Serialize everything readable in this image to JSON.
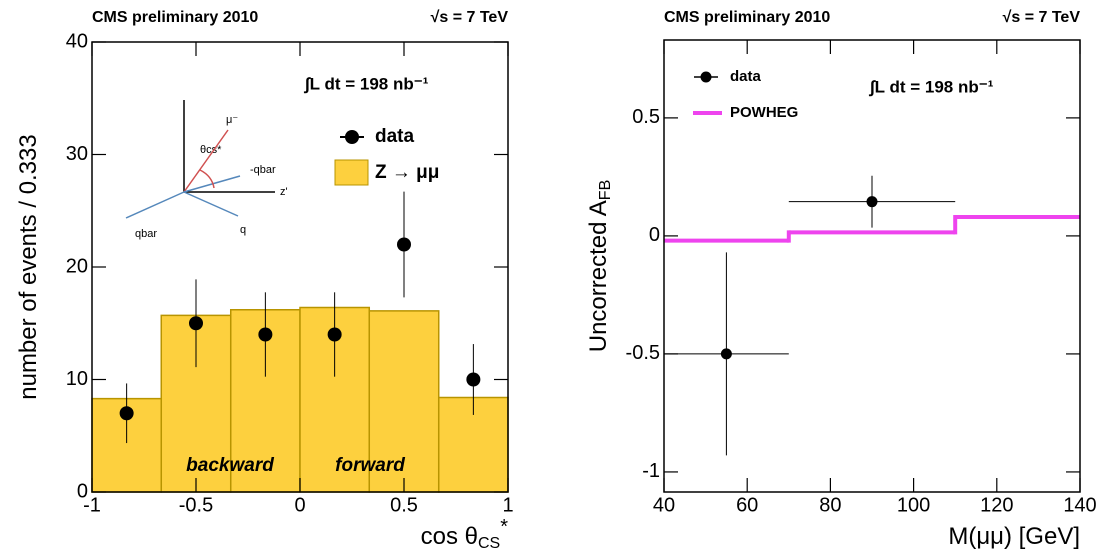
{
  "chart_data": [
    {
      "type": "histogram",
      "title": "CMS preliminary 2010",
      "subtitle": "√s = 7 TeV",
      "annotation": "∫L dt = 198 nb⁻¹",
      "y_label": "number of events / 0.333",
      "x_label": "cos θ",
      "x_label_sub": "CS",
      "x_label_sup": "*",
      "bins": [
        -1,
        -0.667,
        -0.333,
        0,
        0.333,
        0.667,
        1
      ],
      "series": [
        {
          "name": "Z → μμ",
          "color": "#fdd03e",
          "values": [
            8.3,
            15.7,
            16.2,
            16.4,
            16.1,
            8.4
          ]
        },
        {
          "name": "data",
          "color": "#000000",
          "values": [
            7,
            15,
            14,
            14,
            22,
            10
          ],
          "errors": [
            2.65,
            3.9,
            3.75,
            3.75,
            4.7,
            3.15
          ]
        }
      ],
      "xlim": [
        -1,
        1
      ],
      "ylim": [
        0,
        40
      ],
      "xticks": [
        -1,
        -0.5,
        0,
        0.5,
        1
      ],
      "yticks": [
        0,
        10,
        20,
        30,
        40
      ],
      "diagram_labels": [
        "μ⁻",
        "θcs*",
        "-qbar",
        "z'",
        "qbar",
        "q"
      ],
      "direction_labels": [
        "backward",
        "forward"
      ]
    },
    {
      "type": "step",
      "title": "CMS preliminary 2010",
      "subtitle": "√s = 7 TeV",
      "annotation": "∫L dt = 198 nb⁻¹",
      "y_label": "Uncorrected A",
      "y_label_sub": "FB",
      "x_label": "M(μμ)  [GeV]",
      "series": [
        {
          "name": "data",
          "color": "#000000",
          "x": [
            55,
            90
          ],
          "x_errors": [
            15,
            20
          ],
          "values": [
            -0.5,
            0.145
          ],
          "errors": [
            0.43,
            0.11
          ]
        },
        {
          "name": "POWHEG",
          "color": "#ee44ee",
          "bins": [
            40,
            70,
            110,
            140
          ],
          "values": [
            -0.02,
            0.015,
            0.08
          ]
        }
      ],
      "xlim": [
        40,
        140
      ],
      "ylim": [
        -1.085,
        0.83
      ],
      "xticks": [
        40,
        60,
        80,
        100,
        120,
        140
      ],
      "yticks": [
        -1,
        -0.5,
        0,
        0.5
      ]
    }
  ]
}
